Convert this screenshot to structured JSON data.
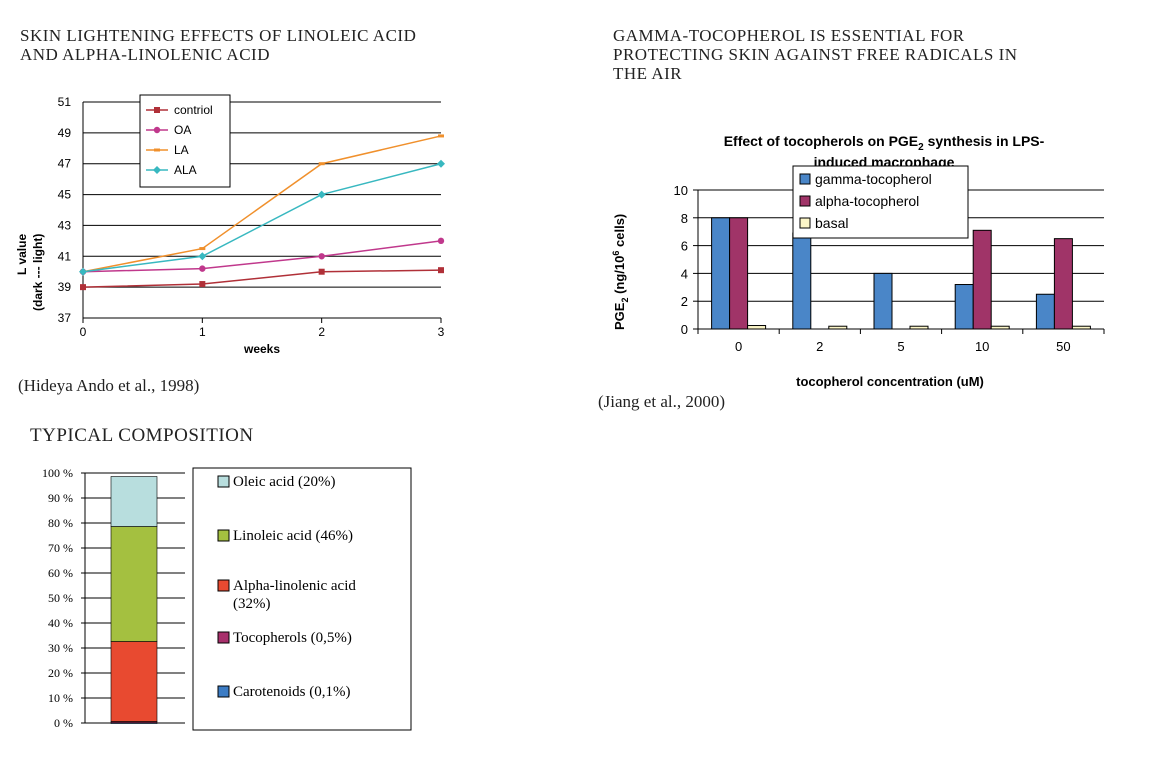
{
  "left_section": {
    "heading_line1": "SKIN LIGHTENING EFFECTS OF LINOLEIC ACID",
    "heading_line2": "AND ALPHA-LINOLENIC ACID",
    "citation": "(Hideya Ando et al., 1998)"
  },
  "right_section": {
    "heading_line1": "GAMMA-TOCOPHEROL  IS  ESSENTIAL  FOR",
    "heading_line2": "PROTECTING SKIN AGAINST FREE RADICALS IN",
    "heading_line3": "THE AIR",
    "citation": "(Jiang et al., 2000)"
  },
  "composition_section": {
    "heading": "TYPICAL COMPOSITION"
  },
  "chart_data": [
    {
      "type": "line",
      "x": [
        0,
        1,
        2,
        3
      ],
      "x_tick_labels": [
        "0",
        "1",
        "2",
        "3"
      ],
      "xlabel": "weeks",
      "ylabel_line1": "L value",
      "ylabel_line2": "(dark    ---    light)",
      "ylim": [
        37,
        51
      ],
      "y_ticks": [
        37,
        39,
        41,
        43,
        45,
        47,
        49,
        51
      ],
      "grid": true,
      "legend_position": "top-left",
      "series": [
        {
          "name": "contriol",
          "values": [
            39,
            39.2,
            40,
            40.1
          ],
          "color": "#b03038",
          "marker": "square"
        },
        {
          "name": "OA",
          "values": [
            40,
            40.2,
            41,
            42
          ],
          "color": "#c0388c",
          "marker": "circle"
        },
        {
          "name": "LA",
          "values": [
            40,
            41.5,
            47,
            48.8
          ],
          "color": "#f0902c",
          "marker": "dash"
        },
        {
          "name": "ALA",
          "values": [
            40,
            41,
            45,
            47
          ],
          "color": "#38b8c0",
          "marker": "diamond"
        }
      ]
    },
    {
      "type": "bar",
      "title_prefix": "Effect of tocopherols on PGE",
      "title_sub": "2",
      "title_rest": " synthesis in LPS-",
      "title_line2": "induced macrophage",
      "categories": [
        "0",
        "2",
        "5",
        "10",
        "50"
      ],
      "xlabel": "tocopherol concentration (uM)",
      "ylabel_parts": [
        "PGE",
        "2",
        " (ng/10",
        "6",
        " cells)"
      ],
      "ylim": [
        0,
        10
      ],
      "y_ticks": [
        0,
        2,
        4,
        6,
        8,
        10
      ],
      "grid": true,
      "legend_position": "top-center",
      "series": [
        {
          "name": "gamma-tocopherol",
          "values": [
            8,
            6.9,
            4,
            3.2,
            2.5
          ],
          "color": "#4a86c8"
        },
        {
          "name": "alpha-tocopherol",
          "values": [
            8,
            null,
            null,
            7.1,
            6.5
          ],
          "color": "#a03468"
        },
        {
          "name": "basal",
          "values": [
            0.25,
            0.2,
            0.2,
            0.2,
            0.2
          ],
          "color": "#fcf6c8"
        }
      ]
    },
    {
      "type": "bar",
      "stacked": true,
      "ylim": [
        0,
        100
      ],
      "y_tick_labels": [
        "0 %",
        "10 %",
        "20 %",
        "30 %",
        "40 %",
        "50 %",
        "60 %",
        "70 %",
        "80 %",
        "90 %",
        "100 %"
      ],
      "legend_position": "right",
      "segments": [
        {
          "name": "Carotenoids (0,1%)",
          "value": 0.1,
          "color": "#3c7cc4"
        },
        {
          "name": "Tocopherols (0,5%)",
          "value": 0.5,
          "color": "#a8306c"
        },
        {
          "name": "Alpha-linolenic acid (32%)",
          "value": 32,
          "color": "#e84a30"
        },
        {
          "name": "Linoleic acid (46%)",
          "value": 46,
          "color": "#a4c040"
        },
        {
          "name": "Oleic acid (20%)",
          "value": 20,
          "color": "#b8dede"
        }
      ],
      "legend_order": [
        {
          "label_line1": "Oleic acid (20%)",
          "label_line2": "",
          "color": "#b8dede"
        },
        {
          "label_line1": "Linoleic acid (46%)",
          "label_line2": "",
          "color": "#a4c040"
        },
        {
          "label_line1": "Alpha-linolenic acid",
          "label_line2": "(32%)",
          "color": "#e84a30"
        },
        {
          "label_line1": "Tocopherols (0,5%)",
          "label_line2": "",
          "color": "#a8306c"
        },
        {
          "label_line1": "Carotenoids (0,1%)",
          "label_line2": "",
          "color": "#3c7cc4"
        }
      ]
    }
  ]
}
